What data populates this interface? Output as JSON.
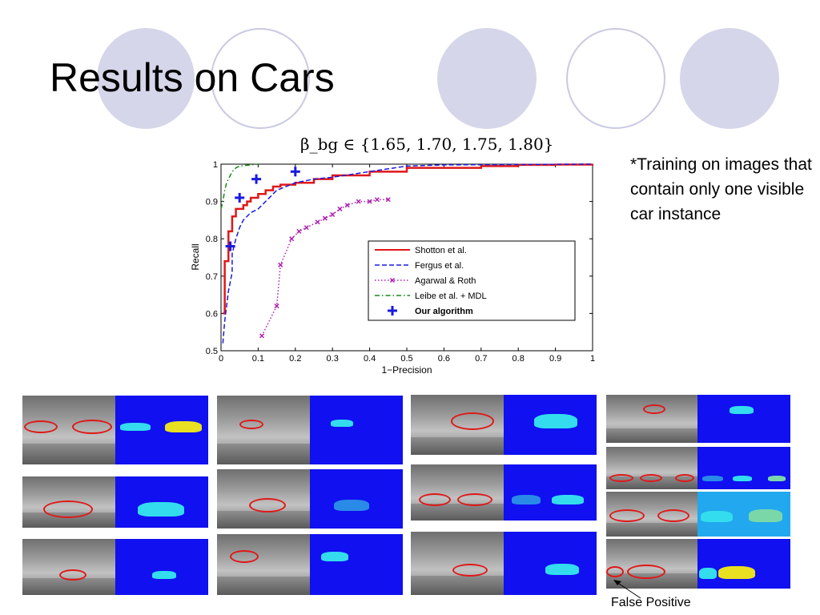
{
  "slide": {
    "title": "Results on Cars"
  },
  "note": "*Training on images that contain only one visible car instance",
  "formula": "β_bg ∈ {1.65, 1.70, 1.75, 1.80}",
  "false_positive_label": "False Positive",
  "colors": {
    "shotton": "#e01818",
    "fergus": "#1a1ae0",
    "agarwal": "#b020b0",
    "leibe": "#1a8a1a",
    "ours": "#1a1ae0",
    "mask_bg": "#1010f0",
    "decor": "#d6d6ea"
  },
  "chart_data": {
    "type": "line",
    "xlabel": "1−Precision",
    "ylabel": "Recall",
    "xlim": [
      0,
      1
    ],
    "ylim": [
      0.5,
      1
    ],
    "xticks": [
      "0",
      "0.1",
      "0.2",
      "0.3",
      "0.4",
      "0.5",
      "0.6",
      "0.7",
      "0.8",
      "0.9",
      "1"
    ],
    "yticks": [
      "0.5",
      "0.6",
      "0.7",
      "0.8",
      "0.9",
      "1"
    ],
    "legend_position": "bottom-right",
    "series": [
      {
        "name": "Shotton et al.",
        "style": "solid",
        "color": "#e01818",
        "x": [
          0.005,
          0.01,
          0.01,
          0.02,
          0.02,
          0.03,
          0.03,
          0.04,
          0.05,
          0.06,
          0.07,
          0.08,
          0.1,
          0.12,
          0.14,
          0.16,
          0.2,
          0.25,
          0.3,
          0.4,
          0.5,
          0.6,
          0.7,
          0.8,
          0.9,
          1.0
        ],
        "y": [
          0.6,
          0.66,
          0.74,
          0.76,
          0.82,
          0.84,
          0.86,
          0.88,
          0.88,
          0.89,
          0.9,
          0.91,
          0.92,
          0.93,
          0.94,
          0.945,
          0.95,
          0.96,
          0.97,
          0.98,
          0.99,
          0.99,
          0.995,
          0.998,
          0.999,
          1.0
        ]
      },
      {
        "name": "Fergus et al.",
        "style": "dashed",
        "color": "#1a1ae0",
        "x": [
          0.005,
          0.01,
          0.02,
          0.03,
          0.03,
          0.04,
          0.05,
          0.06,
          0.08,
          0.1,
          0.12,
          0.15,
          0.2,
          0.25,
          0.3,
          0.4,
          0.5,
          0.6,
          0.8,
          1.0
        ],
        "y": [
          0.52,
          0.58,
          0.66,
          0.71,
          0.76,
          0.8,
          0.83,
          0.85,
          0.87,
          0.88,
          0.9,
          0.93,
          0.95,
          0.96,
          0.965,
          0.98,
          0.995,
          0.998,
          0.999,
          1.0
        ]
      },
      {
        "name": "Agarwal & Roth",
        "style": "dotted",
        "color": "#b020b0",
        "x": [
          0.11,
          0.15,
          0.16,
          0.19,
          0.21,
          0.23,
          0.26,
          0.28,
          0.3,
          0.32,
          0.34,
          0.37,
          0.4,
          0.42,
          0.45
        ],
        "y": [
          0.54,
          0.62,
          0.73,
          0.8,
          0.82,
          0.83,
          0.845,
          0.855,
          0.865,
          0.88,
          0.89,
          0.9,
          0.9,
          0.905,
          0.905
        ]
      },
      {
        "name": "Leibe et al. + MDL",
        "style": "dashdot",
        "color": "#1a8a1a",
        "x": [
          0.0,
          0.005,
          0.01,
          0.015,
          0.02,
          0.03,
          0.04,
          0.05,
          0.07,
          0.1
        ],
        "y": [
          0.88,
          0.9,
          0.93,
          0.95,
          0.96,
          0.98,
          0.99,
          0.995,
          0.997,
          1.0
        ]
      },
      {
        "name": "Our algorithm",
        "style": "markers",
        "color": "#1a1ae0",
        "x": [
          0.025,
          0.05,
          0.095,
          0.2
        ],
        "y": [
          0.78,
          0.91,
          0.96,
          0.98
        ]
      }
    ]
  }
}
